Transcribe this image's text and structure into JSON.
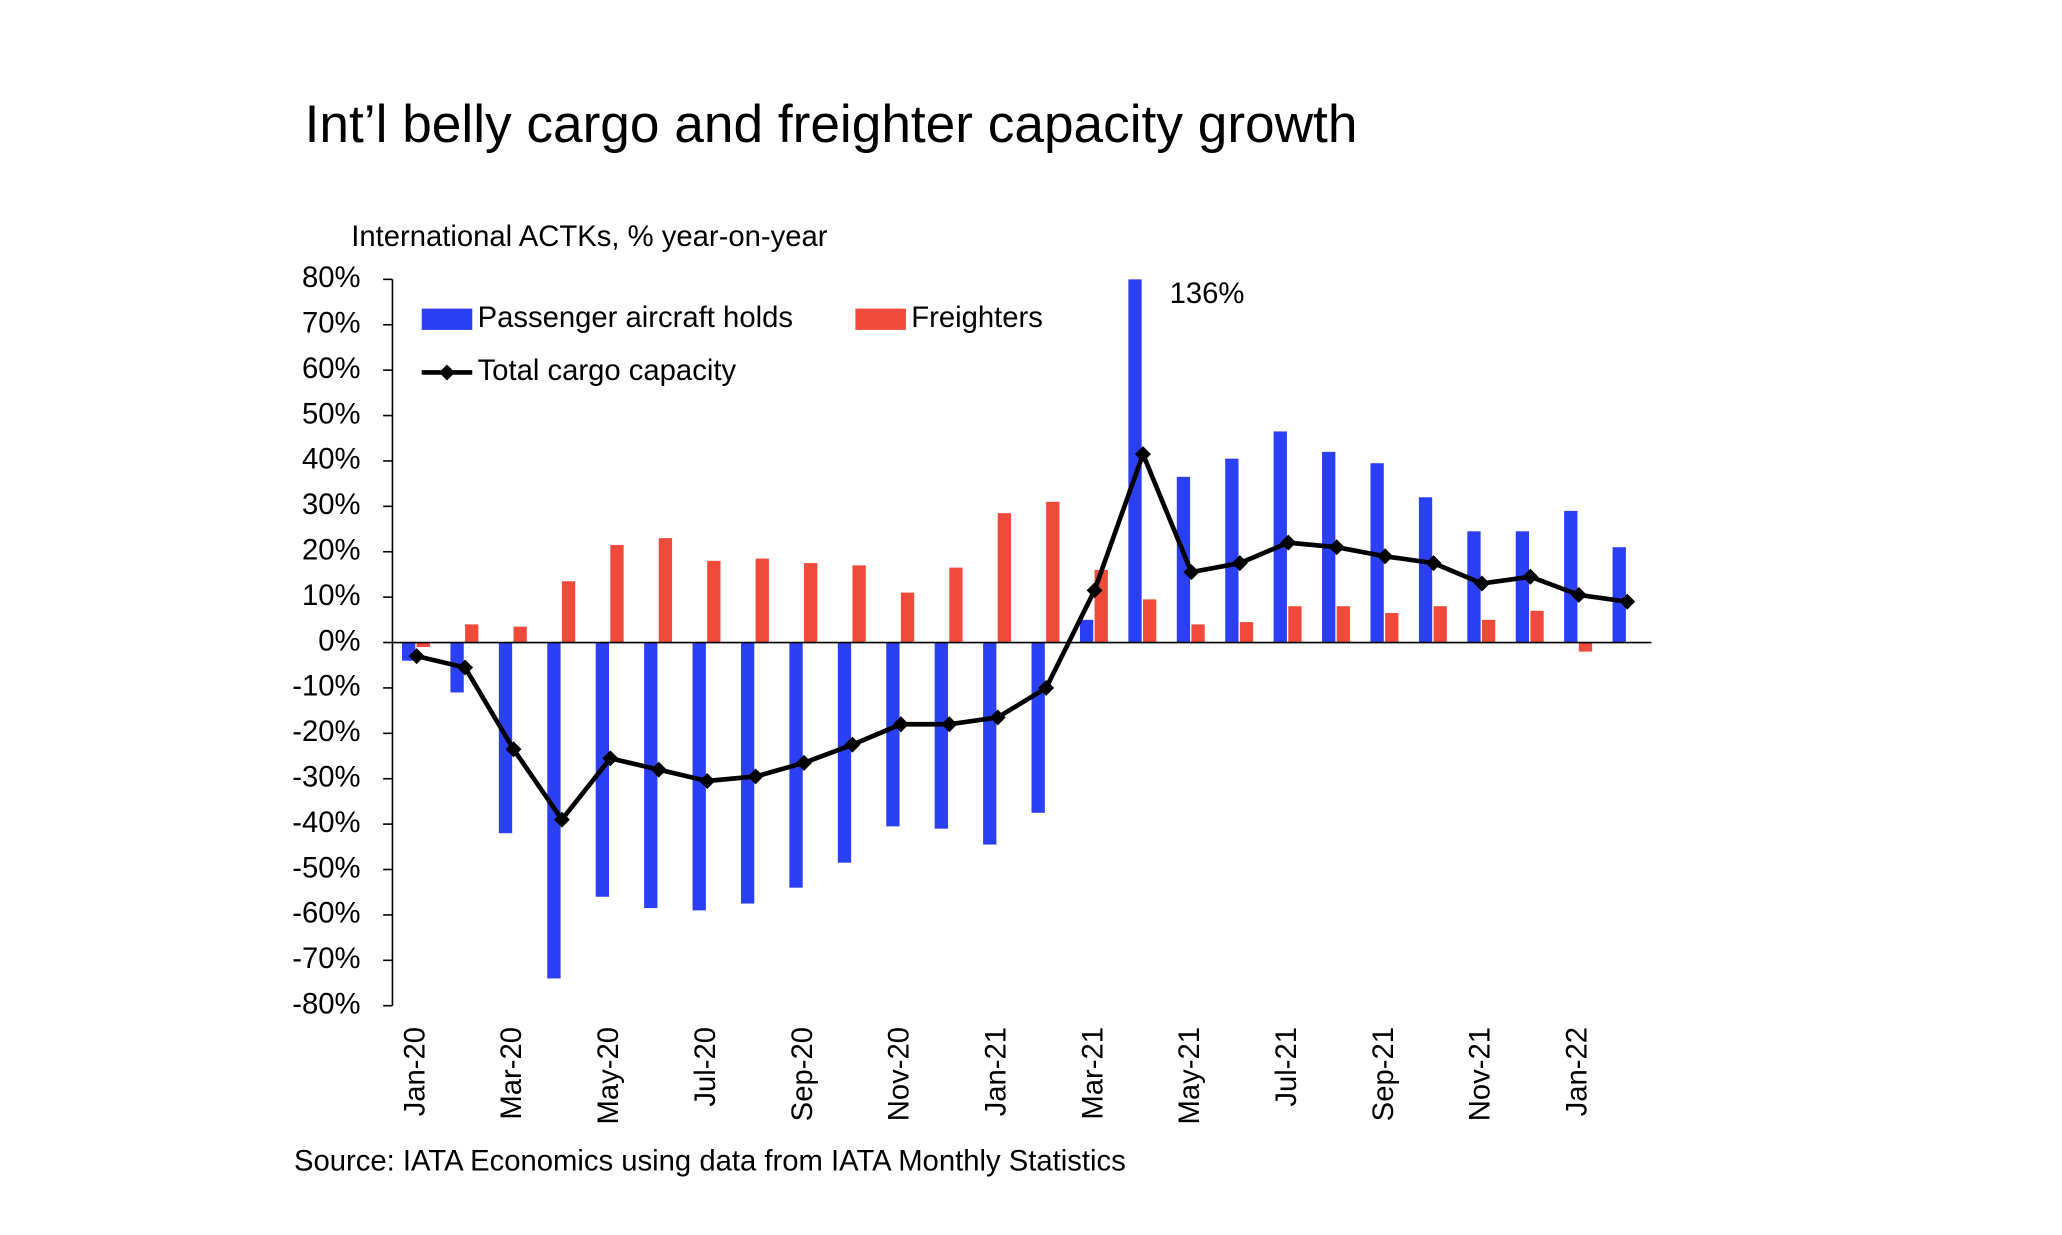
{
  "chart_data": {
    "type": "bar-line",
    "title": "Int’l belly cargo and freighter capacity growth",
    "y_axis_label": "International ACTKs, % year-on-year",
    "source": "Source: IATA Economics using data from IATA Monthly Statistics",
    "categories": [
      "Jan-20",
      null,
      "Mar-20",
      null,
      "May-20",
      null,
      "Jul-20",
      null,
      "Sep-20",
      null,
      "Nov-20",
      null,
      "Jan-21",
      null,
      "Mar-21",
      null,
      "May-21",
      null,
      "Jul-21",
      null,
      "Sep-21",
      null,
      "Nov-21",
      null,
      "Jan-22",
      null
    ],
    "series": [
      {
        "name": "Passenger aircraft holds",
        "kind": "bar",
        "color": "#2b3ff5",
        "values": [
          -4,
          -11,
          -42,
          -74,
          -56,
          -58.5,
          -59,
          -57.5,
          -54,
          -48.5,
          -40.5,
          -41,
          -44.5,
          -37.5,
          5,
          136,
          36.5,
          40.5,
          46.5,
          42,
          39.5,
          32,
          24.5,
          24.5,
          29,
          21
        ],
        "value_labels": [
          null,
          null,
          null,
          null,
          null,
          null,
          null,
          null,
          null,
          null,
          null,
          null,
          null,
          null,
          null,
          "136%",
          null,
          null,
          null,
          null,
          null,
          null,
          null,
          null,
          null,
          null
        ]
      },
      {
        "name": "Freighters",
        "kind": "bar",
        "color": "#f04a3a",
        "values": [
          -1,
          4,
          3.5,
          13.5,
          21.5,
          23,
          18,
          18.5,
          17.5,
          17,
          11,
          16.5,
          28.5,
          31,
          16,
          9.5,
          4,
          4.5,
          8,
          8,
          6.5,
          8,
          5,
          7,
          -2,
          null
        ]
      },
      {
        "name": "Total cargo capacity",
        "kind": "line",
        "color": "#000000",
        "values": [
          -3,
          -5.5,
          -23.5,
          -39,
          -25.5,
          -28,
          -30.5,
          -29.5,
          -26.5,
          -22.5,
          -18,
          -18,
          -16.5,
          -10,
          11.5,
          41.5,
          15.5,
          17.5,
          22,
          21,
          19,
          17.5,
          13,
          14.5,
          10.5,
          9
        ]
      }
    ],
    "ylim": [
      -80,
      80
    ],
    "yticks": [
      {
        "value": -80,
        "label": "-80%"
      },
      {
        "value": -70,
        "label": "-70%"
      },
      {
        "value": -60,
        "label": "-60%"
      },
      {
        "value": -50,
        "label": "-50%"
      },
      {
        "value": -40,
        "label": "-40%"
      },
      {
        "value": -30,
        "label": "-30%"
      },
      {
        "value": -20,
        "label": "-20%"
      },
      {
        "value": -10,
        "label": "-10%"
      },
      {
        "value": 0,
        "label": "0%"
      },
      {
        "value": 10,
        "label": "10%"
      },
      {
        "value": 20,
        "label": "20%"
      },
      {
        "value": 30,
        "label": "30%"
      },
      {
        "value": 40,
        "label": "40%"
      },
      {
        "value": 50,
        "label": "50%"
      },
      {
        "value": 60,
        "label": "60%"
      },
      {
        "value": 70,
        "label": "70%"
      },
      {
        "value": 80,
        "label": "80%"
      }
    ],
    "legend": "top-left"
  }
}
